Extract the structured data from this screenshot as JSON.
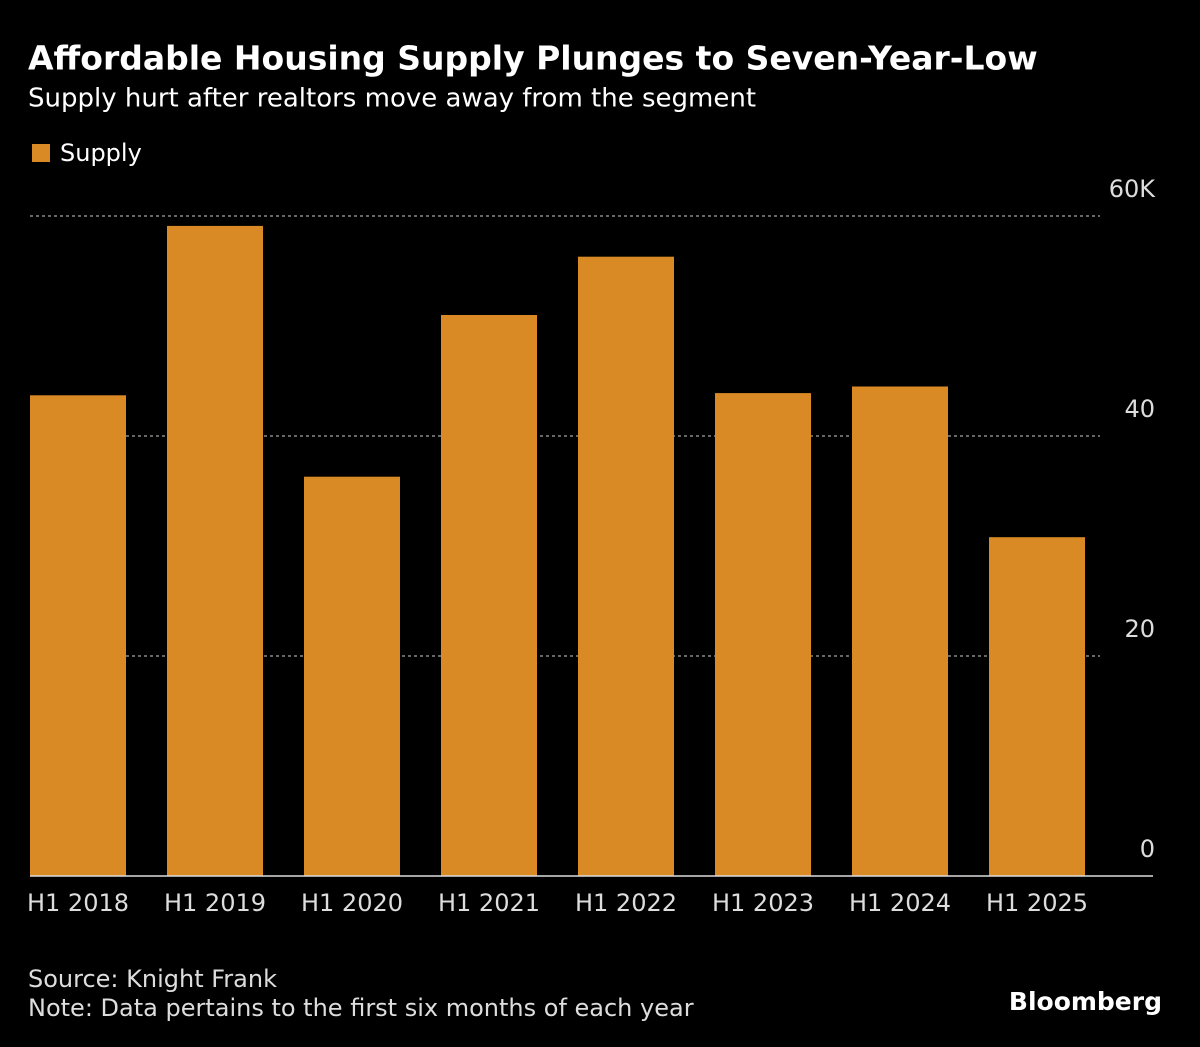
{
  "chart_data": {
    "type": "bar",
    "title": "Affordable Housing Supply Plunges to Seven-Year-Low",
    "subtitle": "Supply hurt after realtors move away from the segment",
    "categories": [
      "H1 2018",
      "H1 2019",
      "H1 2020",
      "H1 2021",
      "H1 2022",
      "H1 2023",
      "H1 2024",
      "H1 2025"
    ],
    "series": [
      {
        "name": "Supply",
        "color": "#d98a24",
        "values": [
          43.7,
          59.1,
          36.3,
          51.0,
          56.3,
          43.9,
          44.5,
          30.8
        ]
      }
    ],
    "ylim": [
      0,
      60
    ],
    "yticks": [
      0,
      20,
      40,
      {
        "value": 60,
        "label": "60K"
      }
    ],
    "grid": true,
    "source": "Source: Knight Frank",
    "note": "Note: Data pertains to the first six months of each year",
    "brand": "Bloomberg"
  }
}
